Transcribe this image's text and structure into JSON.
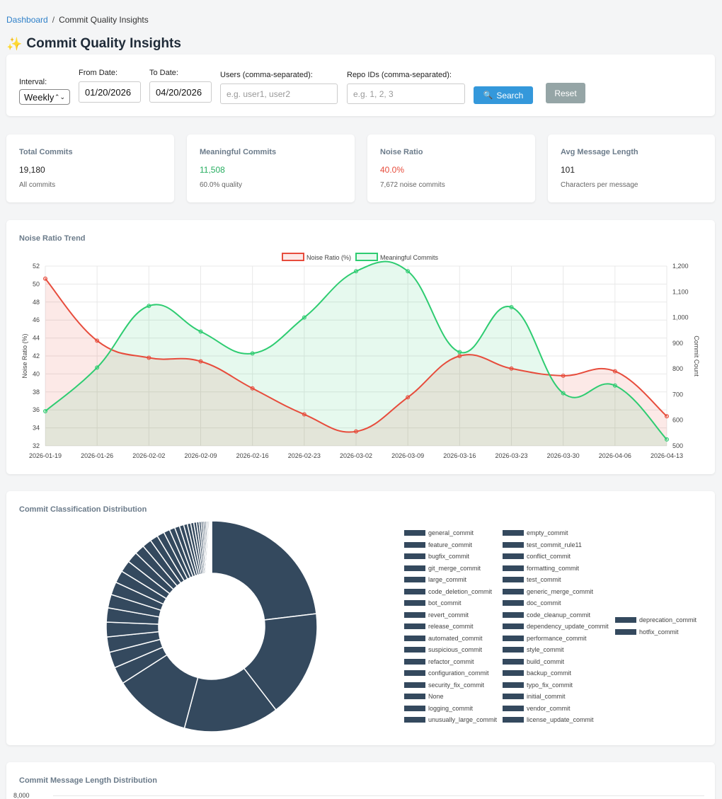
{
  "breadcrumb": {
    "link": "Dashboard",
    "separator": "/",
    "current": "Commit Quality Insights"
  },
  "page_title": "Commit Quality Insights",
  "filters": {
    "interval_label": "Interval:",
    "interval_value": "Weekly",
    "from_label": "From Date:",
    "from_value": "01/20/2026",
    "to_label": "To Date:",
    "to_value": "04/20/2026",
    "users_label": "Users (comma-separated):",
    "users_placeholder": "e.g. user1, user2",
    "repos_label": "Repo IDs (comma-separated):",
    "repos_placeholder": "e.g. 1, 2, 3",
    "search_label": "Search",
    "reset_label": "Reset"
  },
  "stats": [
    {
      "label": "Total Commits",
      "value": "19,180",
      "sub": "All commits",
      "color": "#222222"
    },
    {
      "label": "Meaningful Commits",
      "value": "11,508",
      "sub": "60.0% quality",
      "color": "#27ae60"
    },
    {
      "label": "Noise Ratio",
      "value": "40.0%",
      "sub": "7,672 noise commits",
      "color": "#e74c3c"
    },
    {
      "label": "Avg Message Length",
      "value": "101",
      "sub": "Characters per message",
      "color": "#222222"
    }
  ],
  "trend": {
    "title": "Noise Ratio Trend",
    "colors": {
      "noise": "#e74c3c",
      "meaningful": "#2ecc71"
    }
  },
  "chart_data": [
    {
      "type": "line",
      "x": [
        "2026-01-19",
        "2026-01-26",
        "2026-02-02",
        "2026-02-09",
        "2026-02-16",
        "2026-02-23",
        "2026-03-02",
        "2026-03-09",
        "2026-03-16",
        "2026-03-23",
        "2026-03-30",
        "2026-04-06",
        "2026-04-13"
      ],
      "series": [
        {
          "name": "Noise Ratio (%)",
          "axis": "left",
          "values": [
            50.6,
            43.7,
            41.8,
            41.4,
            38.4,
            35.5,
            33.6,
            37.4,
            42.0,
            40.6,
            39.8,
            40.3,
            35.3
          ]
        },
        {
          "name": "Meaningful Commits",
          "axis": "right",
          "values": [
            635,
            805,
            1045,
            945,
            860,
            1000,
            1180,
            1180,
            865,
            1040,
            705,
            735,
            525
          ]
        }
      ],
      "ylabel_left": "Noise Ratio (%)",
      "ylabel_right": "Commit Count",
      "ylim_left": [
        32,
        52
      ],
      "yticks_left": [
        32,
        34,
        36,
        38,
        40,
        42,
        44,
        46,
        48,
        50,
        52
      ],
      "ylim_right": [
        500,
        1200
      ],
      "yticks_right": [
        "500",
        "600",
        "700",
        "800",
        "900",
        "1,000",
        "1,100",
        "1,200"
      ],
      "legend": "top-center",
      "grid": true
    },
    {
      "type": "pie",
      "title": "Commit Classification Distribution",
      "legend": "right",
      "labels": [
        "general_commit",
        "feature_commit",
        "bugfix_commit",
        "git_merge_commit",
        "large_commit",
        "code_deletion_commit",
        "bot_commit",
        "revert_commit",
        "release_commit",
        "automated_commit",
        "suspicious_commit",
        "refactor_commit",
        "configuration_commit",
        "security_fix_commit",
        "None",
        "logging_commit",
        "unusually_large_commit",
        "empty_commit",
        "test_commit_rule11",
        "conflict_commit",
        "formatting_commit",
        "test_commit",
        "generic_merge_commit",
        "doc_commit",
        "code_cleanup_commit",
        "dependency_update_commit",
        "performance_commit",
        "style_commit",
        "build_commit",
        "backup_commit",
        "typo_fix_commit",
        "initial_commit",
        "vendor_commit",
        "license_update_commit",
        "deprecation_commit",
        "hotfix_commit"
      ],
      "values": [
        24.5,
        17.5,
        15.5,
        12.5,
        2.8,
        2.6,
        2.5,
        2.4,
        2.3,
        2.2,
        2.1,
        2.0,
        1.9,
        1.8,
        1.6,
        1.5,
        1.3,
        1.2,
        1.0,
        0.9,
        0.8,
        0.7,
        0.6,
        0.55,
        0.5,
        0.45,
        0.4,
        0.35,
        0.3,
        0.28,
        0.25,
        0.22,
        0.2,
        0.18,
        0.15,
        0.12
      ],
      "color": "#34495e"
    }
  ],
  "length_chart": {
    "title": "Commit Message Length Distribution",
    "first_tick": "8,000"
  }
}
